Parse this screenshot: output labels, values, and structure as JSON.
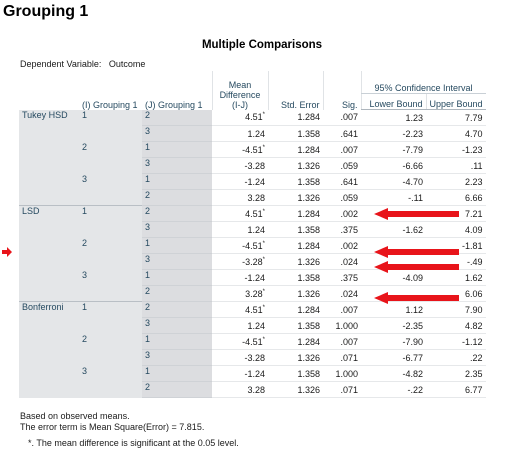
{
  "title": "Grouping 1",
  "table_title": "Multiple Comparisons",
  "dependent_variable": {
    "label": "Dependent Variable:",
    "value": "Outcome"
  },
  "headers": {
    "i_group": "(I) Grouping 1",
    "j_group": "(J) Grouping 1",
    "mean_difference": "Mean Difference (I-J)",
    "std_error": "Std. Error",
    "sig": "Sig.",
    "ci": "95% Confidence Interval",
    "lower": "Lower Bound",
    "upper": "Upper Bound"
  },
  "methods": [
    "Tukey HSD",
    "LSD",
    "Bonferroni"
  ],
  "i_levels": [
    "1",
    "2",
    "3"
  ],
  "rows": [
    {
      "method": "Tukey HSD",
      "i": "1",
      "j": "2",
      "md": "4.51",
      "star": "*",
      "se": "1.284",
      "sig": ".007",
      "lb": "1.23",
      "ub": "7.79"
    },
    {
      "method": "Tukey HSD",
      "i": "1",
      "j": "3",
      "md": "1.24",
      "star": "",
      "se": "1.358",
      "sig": ".641",
      "lb": "-2.23",
      "ub": "4.70"
    },
    {
      "method": "Tukey HSD",
      "i": "2",
      "j": "1",
      "md": "-4.51",
      "star": "*",
      "se": "1.284",
      "sig": ".007",
      "lb": "-7.79",
      "ub": "-1.23"
    },
    {
      "method": "Tukey HSD",
      "i": "2",
      "j": "3",
      "md": "-3.28",
      "star": "",
      "se": "1.326",
      "sig": ".059",
      "lb": "-6.66",
      "ub": ".11"
    },
    {
      "method": "Tukey HSD",
      "i": "3",
      "j": "1",
      "md": "-1.24",
      "star": "",
      "se": "1.358",
      "sig": ".641",
      "lb": "-4.70",
      "ub": "2.23"
    },
    {
      "method": "Tukey HSD",
      "i": "3",
      "j": "2",
      "md": "3.28",
      "star": "",
      "se": "1.326",
      "sig": ".059",
      "lb": "-.11",
      "ub": "6.66"
    },
    {
      "method": "LSD",
      "i": "1",
      "j": "2",
      "md": "4.51",
      "star": "*",
      "se": "1.284",
      "sig": ".002",
      "lb": "",
      "ub": "7.21"
    },
    {
      "method": "LSD",
      "i": "1",
      "j": "3",
      "md": "1.24",
      "star": "",
      "se": "1.358",
      "sig": ".375",
      "lb": "-1.62",
      "ub": "4.09"
    },
    {
      "method": "LSD",
      "i": "2",
      "j": "1",
      "md": "-4.51",
      "star": "*",
      "se": "1.284",
      "sig": ".002",
      "lb": "",
      "ub": "-1.81"
    },
    {
      "method": "LSD",
      "i": "2",
      "j": "3",
      "md": "-3.28",
      "star": "*",
      "se": "1.326",
      "sig": ".024",
      "lb": "",
      "ub": "-.49"
    },
    {
      "method": "LSD",
      "i": "3",
      "j": "1",
      "md": "-1.24",
      "star": "",
      "se": "1.358",
      "sig": ".375",
      "lb": "-4.09",
      "ub": "1.62"
    },
    {
      "method": "LSD",
      "i": "3",
      "j": "2",
      "md": "3.28",
      "star": "*",
      "se": "1.326",
      "sig": ".024",
      "lb": "",
      "ub": "6.06"
    },
    {
      "method": "Bonferroni",
      "i": "1",
      "j": "2",
      "md": "4.51",
      "star": "*",
      "se": "1.284",
      "sig": ".007",
      "lb": "1.12",
      "ub": "7.90"
    },
    {
      "method": "Bonferroni",
      "i": "1",
      "j": "3",
      "md": "1.24",
      "star": "",
      "se": "1.358",
      "sig": "1.000",
      "lb": "-2.35",
      "ub": "4.82"
    },
    {
      "method": "Bonferroni",
      "i": "2",
      "j": "1",
      "md": "-4.51",
      "star": "*",
      "se": "1.284",
      "sig": ".007",
      "lb": "-7.90",
      "ub": "-1.12"
    },
    {
      "method": "Bonferroni",
      "i": "2",
      "j": "3",
      "md": "-3.28",
      "star": "",
      "se": "1.326",
      "sig": ".071",
      "lb": "-6.77",
      "ub": ".22"
    },
    {
      "method": "Bonferroni",
      "i": "3",
      "j": "1",
      "md": "-1.24",
      "star": "",
      "se": "1.358",
      "sig": "1.000",
      "lb": "-4.82",
      "ub": "2.35"
    },
    {
      "method": "Bonferroni",
      "i": "3",
      "j": "2",
      "md": "3.28",
      "star": "",
      "se": "1.326",
      "sig": ".071",
      "lb": "-.22",
      "ub": "6.77"
    }
  ],
  "footnotes": {
    "based_on": "Based on observed means.",
    "error_term": "The error term is Mean Square(Error) = 7.815.",
    "significance": "*. The mean difference is significant at the 0.05 level."
  },
  "annotation_color": "#e8141a"
}
